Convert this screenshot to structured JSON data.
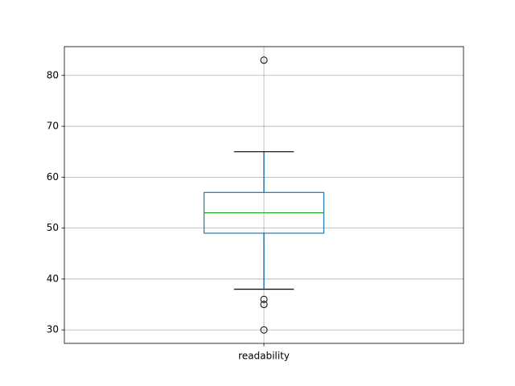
{
  "chart_data": {
    "type": "box",
    "categories": [
      "readability"
    ],
    "boxes": [
      {
        "whislo": 38,
        "q1": 49,
        "med": 53,
        "q3": 57,
        "whishi": 65,
        "fliers": [
          83,
          36,
          35,
          30
        ]
      }
    ],
    "box_color": "#1f77b4",
    "median_color": "#2ca02c",
    "cap_color": "#000000",
    "flier_color": "#000000",
    "ylim": [
      27.35,
      85.65
    ],
    "yticks": [
      30,
      40,
      50,
      60,
      70,
      80
    ],
    "grid": true
  }
}
